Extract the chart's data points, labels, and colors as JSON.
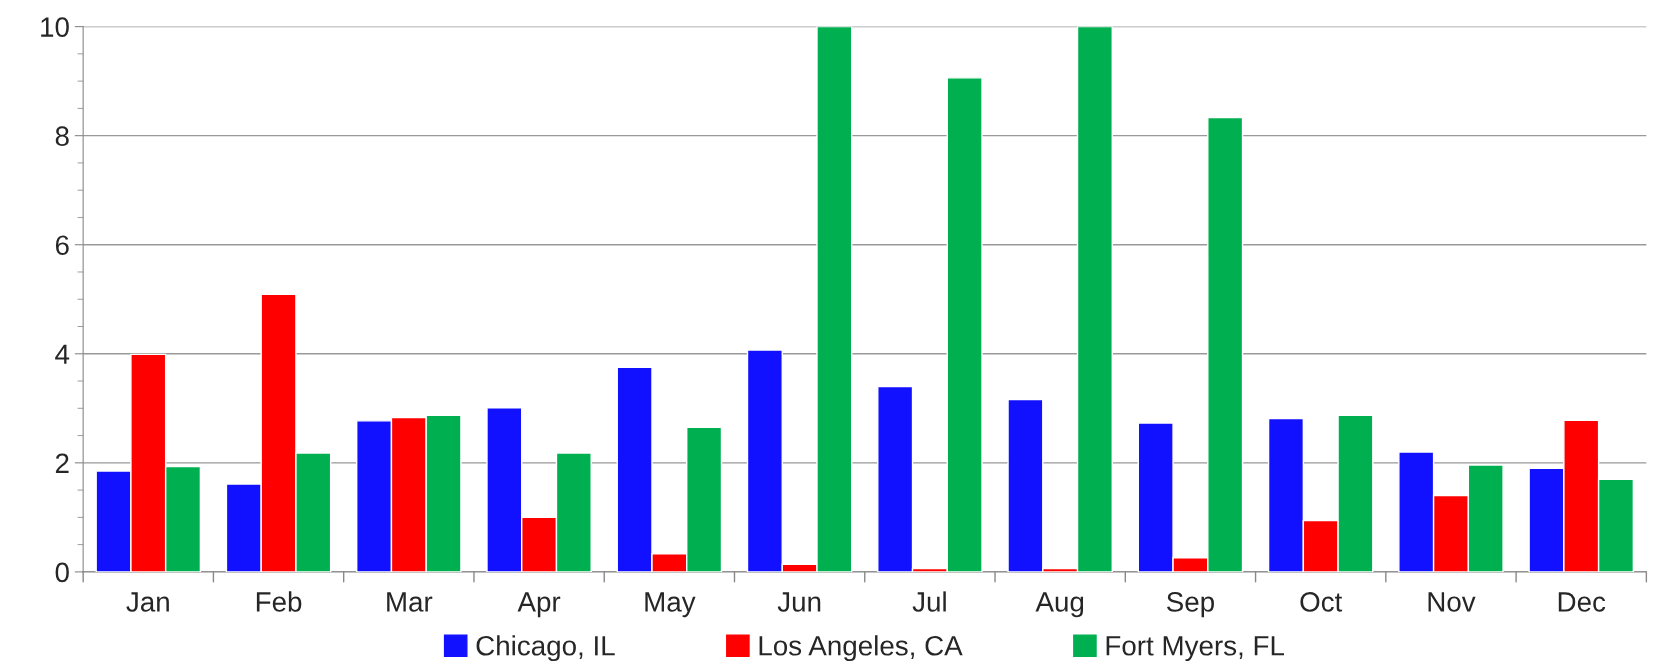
{
  "chart_data": {
    "type": "bar",
    "categories": [
      "Jan",
      "Feb",
      "Mar",
      "Apr",
      "May",
      "Jun",
      "Jul",
      "Aug",
      "Sep",
      "Oct",
      "Nov",
      "Dec"
    ],
    "series": [
      {
        "name": "Chicago, IL",
        "color": "#1111ff",
        "values": [
          1.85,
          1.61,
          2.77,
          3.01,
          3.75,
          4.07,
          3.4,
          3.16,
          2.73,
          2.81,
          2.2,
          1.9
        ]
      },
      {
        "name": "Los Angeles, CA",
        "color": "#ff0000",
        "values": [
          3.99,
          5.09,
          2.83,
          1.0,
          0.33,
          0.14,
          0.06,
          0.06,
          0.26,
          0.94,
          1.4,
          2.78
        ]
      },
      {
        "name": "Fort Myers, FL",
        "color": "#00b050",
        "values": [
          1.93,
          2.18,
          2.87,
          2.18,
          2.65,
          10,
          9.06,
          10,
          8.33,
          2.87,
          1.96,
          1.7
        ]
      }
    ],
    "ylim": [
      0,
      10
    ],
    "yticks": [
      0,
      2,
      4,
      6,
      8,
      10
    ],
    "grid": "y",
    "legend": "bottom"
  }
}
